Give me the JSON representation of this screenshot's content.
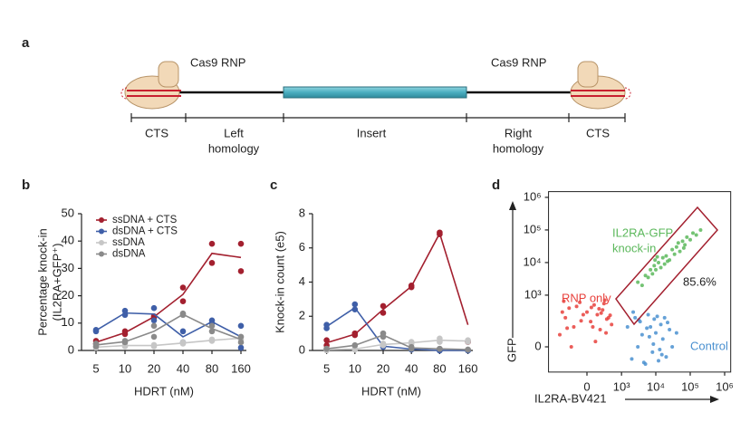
{
  "panel_a": {
    "label": "a",
    "rnp_left": "Cas9 RNP",
    "rnp_right": "Cas9 RNP",
    "segments": [
      [
        "CTS"
      ],
      [
        "Left",
        "homology"
      ],
      [
        "Insert"
      ],
      [
        "Right",
        "homology"
      ],
      [
        "CTS"
      ]
    ]
  },
  "chart_data": [
    {
      "type": "line",
      "panel": "b",
      "ylabel": [
        "Percentage knock-in",
        "(IL2RA+GFP⁺)"
      ],
      "xlabel": "HDRT (nM)",
      "categories": [
        "5",
        "10",
        "20",
        "40",
        "80",
        "160"
      ],
      "ylim": [
        0,
        50
      ],
      "yticks": [
        0,
        10,
        20,
        30,
        40,
        50
      ],
      "legend": "upper left",
      "series": [
        {
          "name": "ssDNA + CTS",
          "color": "#a3202f",
          "values": [
            3,
            6.5,
            12.3,
            20.5,
            35.5,
            34
          ],
          "replicates": [
            [
              2.5,
              3.5
            ],
            [
              6,
              7
            ],
            [
              12,
              12.5
            ],
            [
              18,
              23
            ],
            [
              39,
              32
            ],
            [
              39,
              29
            ]
          ]
        },
        {
          "name": "dsDNA + CTS",
          "color": "#3f5fa8",
          "values": [
            7.3,
            13.7,
            13.3,
            5,
            10.5,
            5
          ],
          "replicates": [
            [
              7,
              7.5
            ],
            [
              13,
              14.5
            ],
            [
              11,
              15.5
            ],
            [
              3,
              7
            ],
            [
              10,
              11
            ],
            [
              9,
              1
            ]
          ]
        },
        {
          "name": "ssDNA",
          "color": "#c6c6c6",
          "values": [
            1.2,
            1.8,
            1.8,
            2.7,
            3.7,
            4.5
          ],
          "replicates": [
            [
              1,
              1.5
            ],
            [
              1.5,
              2
            ],
            [
              1.5,
              2
            ],
            [
              2.5,
              3
            ],
            [
              3.5,
              4
            ],
            [
              5,
              4
            ]
          ]
        },
        {
          "name": "dsDNA",
          "color": "#8a8a8a",
          "values": [
            2,
            3.2,
            7,
            13.2,
            8,
            4
          ],
          "replicates": [
            [
              1.5,
              2.5
            ],
            [
              3,
              3.5
            ],
            [
              5,
              9
            ],
            [
              13.5,
              13
            ],
            [
              7,
              9
            ],
            [
              5,
              3
            ]
          ]
        }
      ]
    },
    {
      "type": "line",
      "panel": "c",
      "ylabel": [
        "Knock-in count (e5)"
      ],
      "xlabel": "HDRT (nM)",
      "categories": [
        "5",
        "10",
        "20",
        "40",
        "80",
        "160"
      ],
      "ylim": [
        0,
        8
      ],
      "yticks": [
        0,
        2,
        4,
        6,
        8
      ],
      "series": [
        {
          "color": "#a3202f",
          "values": [
            0.45,
            0.95,
            2.4,
            3.75,
            6.85,
            1.5
          ],
          "replicates": [
            [
              0.3,
              0.6
            ],
            [
              0.9,
              1
            ],
            [
              2.2,
              2.6
            ],
            [
              3.7,
              3.8
            ],
            [
              6.8,
              6.9
            ],
            [
              0.5,
              0.5
            ]
          ]
        },
        {
          "color": "#3f5fa8",
          "values": [
            1.4,
            2.5,
            0.25,
            0.08,
            0,
            0
          ],
          "replicates": [
            [
              1.3,
              1.5
            ],
            [
              2.4,
              2.7
            ],
            [
              0.2,
              0.3
            ],
            [
              0.05,
              0.1
            ],
            [
              0,
              0
            ],
            [
              0,
              0
            ]
          ]
        },
        {
          "color": "#c6c6c6",
          "values": [
            0.05,
            0.08,
            0.35,
            0.45,
            0.6,
            0.55
          ],
          "replicates": [
            [
              0,
              0.1
            ],
            [
              0.05,
              0.1
            ],
            [
              0.3,
              0.4
            ],
            [
              0.4,
              0.5
            ],
            [
              0.5,
              0.7
            ],
            [
              0.5,
              0.6
            ]
          ]
        },
        {
          "color": "#8a8a8a",
          "values": [
            0.1,
            0.3,
            0.9,
            0.15,
            0.1,
            0.05
          ],
          "replicates": [
            [
              0.1,
              0.1
            ],
            [
              0.3,
              0.3
            ],
            [
              0.8,
              1.0
            ],
            [
              0.1,
              0.2
            ],
            [
              0.1,
              0.1
            ],
            [
              0.05,
              0.05
            ]
          ]
        }
      ]
    },
    {
      "type": "scatter",
      "panel": "d",
      "xlabel": "IL2RA-BV421",
      "ylabel": "GFP",
      "scale": "biexponential",
      "xlim": [
        -1300,
        1500000
      ],
      "ylim": [
        -150,
        1500000
      ],
      "xticks": [
        0,
        {
          "value": 1000,
          "label": "10³"
        },
        {
          "value": 10000,
          "label": "10⁴"
        },
        {
          "value": 100000,
          "label": "10⁵"
        },
        {
          "value": 1000000,
          "label": "10⁶"
        }
      ],
      "yticks": [
        0,
        {
          "value": 1000,
          "label": "10³"
        },
        {
          "value": 10000,
          "label": "10⁴"
        },
        {
          "value": 100000,
          "label": "10⁵"
        },
        {
          "value": 1000000,
          "label": "10⁶"
        }
      ],
      "gate_label": "85.6%",
      "series": [
        {
          "label": [
            "RNP only"
          ],
          "color": "#e8413c",
          "x": [
            -600,
            -400,
            -300,
            -200,
            -100,
            0,
            50,
            100,
            150,
            200,
            250,
            300,
            400,
            500,
            -500,
            -250,
            -150,
            -50,
            80,
            180,
            280,
            350,
            -350,
            -450,
            120,
            60,
            -80,
            220,
            330,
            450
          ],
          "y": [
            50,
            200,
            400,
            100,
            600,
            300,
            150,
            500,
            250,
            80,
            350,
            700,
            200,
            120,
            300,
            0,
            450,
            250,
            100,
            380,
            550,
            180,
            90,
            650,
            20,
            420,
            160,
            280,
            60,
            240
          ]
        },
        {
          "label": [
            "Control"
          ],
          "color": "#4a90d0",
          "x": [
            1500,
            2000,
            2500,
            3000,
            3500,
            4000,
            5000,
            6000,
            7000,
            8000,
            9000,
            10000,
            12000,
            14000,
            16000,
            18000,
            20000,
            25000,
            30000,
            40000,
            2200,
            4500,
            6500,
            11000,
            15000,
            22000,
            8500,
            5500,
            13000,
            3200
          ],
          "y": [
            100,
            -50,
            200,
            0,
            150,
            50,
            -80,
            250,
            100,
            -20,
            180,
            60,
            -60,
            120,
            30,
            200,
            -40,
            80,
            0,
            60,
            300,
            -70,
            40,
            220,
            -30,
            140,
            10,
            90,
            -10,
            170
          ]
        },
        {
          "label": [
            "IL2RA-GFP",
            "knock-in"
          ],
          "color": "#5cb85c",
          "x": [
            3000,
            4000,
            5000,
            6000,
            7000,
            8000,
            9000,
            10000,
            12000,
            14000,
            16000,
            18000,
            20000,
            25000,
            30000,
            35000,
            40000,
            50000,
            60000,
            70000,
            80000,
            100000,
            120000,
            150000,
            200000,
            11000,
            22000,
            45000,
            9500,
            65000
          ],
          "y": [
            2500,
            2000,
            4000,
            3500,
            6000,
            4500,
            8000,
            6000,
            10000,
            7000,
            14000,
            9000,
            16000,
            12000,
            25000,
            18000,
            30000,
            22000,
            45000,
            35000,
            60000,
            50000,
            80000,
            70000,
            100000,
            15000,
            11000,
            40000,
            12000,
            28000
          ]
        }
      ]
    }
  ]
}
